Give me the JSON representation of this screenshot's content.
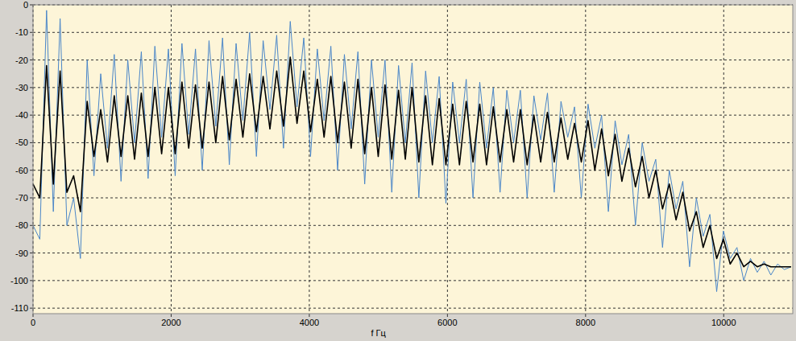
{
  "chart_data": {
    "type": "line",
    "xlabel": "f Гц",
    "xlim": [
      0,
      11000
    ],
    "xticks": [
      0,
      2000,
      4000,
      6000,
      8000,
      10000
    ],
    "ylim": [
      -112,
      0
    ],
    "yticks": [
      0,
      -10,
      -20,
      -30,
      -40,
      -50,
      -60,
      -70,
      -80,
      -90,
      -100,
      -110
    ],
    "grid": true,
    "series": [
      {
        "color": "#4a86c8",
        "x": [
          0,
          98,
          196,
          294,
          392,
          490,
          588,
          686,
          784,
          882,
          980,
          1078,
          1176,
          1274,
          1372,
          1470,
          1568,
          1666,
          1764,
          1862,
          1960,
          2058,
          2156,
          2254,
          2352,
          2450,
          2548,
          2646,
          2744,
          2842,
          2940,
          3038,
          3136,
          3234,
          3332,
          3430,
          3528,
          3626,
          3724,
          3822,
          3920,
          4018,
          4116,
          4214,
          4312,
          4410,
          4508,
          4606,
          4704,
          4802,
          4900,
          4998,
          5096,
          5194,
          5292,
          5390,
          5488,
          5586,
          5684,
          5782,
          5880,
          5978,
          6076,
          6174,
          6272,
          6370,
          6468,
          6566,
          6664,
          6762,
          6860,
          6958,
          7056,
          7154,
          7252,
          7350,
          7448,
          7546,
          7644,
          7742,
          7840,
          7938,
          8036,
          8134,
          8232,
          8330,
          8428,
          8526,
          8624,
          8722,
          8820,
          8918,
          9016,
          9114,
          9212,
          9310,
          9408,
          9506,
          9604,
          9702,
          9800,
          9898,
          9996,
          10094,
          10192,
          10290,
          10388,
          10486,
          10584,
          10682,
          10780,
          10878,
          10976
        ],
        "values": [
          -80,
          -85,
          -2,
          -75,
          -5,
          -80,
          -70,
          -92,
          -20,
          -62,
          -25,
          -52,
          -18,
          -64,
          -20,
          -50,
          -17,
          -63,
          -15,
          -48,
          -16,
          -62,
          -14,
          -47,
          -16,
          -60,
          -13,
          -44,
          -12,
          -58,
          -14,
          -42,
          -10,
          -55,
          -13,
          -38,
          -11,
          -52,
          -6,
          -37,
          -12,
          -55,
          -16,
          -42,
          -15,
          -60,
          -18,
          -45,
          -17,
          -65,
          -20,
          -48,
          -20,
          -68,
          -22,
          -50,
          -21,
          -70,
          -24,
          -50,
          -26,
          -72,
          -28,
          -50,
          -27,
          -70,
          -28,
          -52,
          -30,
          -68,
          -31,
          -50,
          -31,
          -70,
          -33,
          -49,
          -32,
          -68,
          -35,
          -48,
          -37,
          -70,
          -36,
          -52,
          -40,
          -75,
          -42,
          -58,
          -47,
          -80,
          -50,
          -64,
          -56,
          -88,
          -60,
          -74,
          -64,
          -95,
          -70,
          -84,
          -76,
          -104,
          -82,
          -92,
          -88,
          -100,
          -92,
          -97,
          -93,
          -98,
          -94,
          -96,
          -95
        ]
      },
      {
        "color": "#000000",
        "x": [
          0,
          98,
          196,
          294,
          392,
          490,
          588,
          686,
          784,
          882,
          980,
          1078,
          1176,
          1274,
          1372,
          1470,
          1568,
          1666,
          1764,
          1862,
          1960,
          2058,
          2156,
          2254,
          2352,
          2450,
          2548,
          2646,
          2744,
          2842,
          2940,
          3038,
          3136,
          3234,
          3332,
          3430,
          3528,
          3626,
          3724,
          3822,
          3920,
          4018,
          4116,
          4214,
          4312,
          4410,
          4508,
          4606,
          4704,
          4802,
          4900,
          4998,
          5096,
          5194,
          5292,
          5390,
          5488,
          5586,
          5684,
          5782,
          5880,
          5978,
          6076,
          6174,
          6272,
          6370,
          6468,
          6566,
          6664,
          6762,
          6860,
          6958,
          7056,
          7154,
          7252,
          7350,
          7448,
          7546,
          7644,
          7742,
          7840,
          7938,
          8036,
          8134,
          8232,
          8330,
          8428,
          8526,
          8624,
          8722,
          8820,
          8918,
          9016,
          9114,
          9212,
          9310,
          9408,
          9506,
          9604,
          9702,
          9800,
          9898,
          9996,
          10094,
          10192,
          10290,
          10388,
          10486,
          10584,
          10682,
          10780,
          10878,
          10976
        ],
        "values": [
          -65,
          -70,
          -22,
          -65,
          -24,
          -68,
          -62,
          -75,
          -35,
          -55,
          -38,
          -57,
          -33,
          -55,
          -33,
          -56,
          -32,
          -55,
          -30,
          -54,
          -30,
          -54,
          -28,
          -52,
          -29,
          -52,
          -28,
          -50,
          -26,
          -49,
          -27,
          -48,
          -25,
          -46,
          -26,
          -45,
          -24,
          -44,
          -19,
          -43,
          -24,
          -46,
          -27,
          -48,
          -26,
          -50,
          -28,
          -52,
          -27,
          -54,
          -30,
          -55,
          -29,
          -56,
          -31,
          -56,
          -30,
          -57,
          -33,
          -58,
          -34,
          -58,
          -36,
          -58,
          -35,
          -57,
          -36,
          -58,
          -37,
          -57,
          -38,
          -57,
          -38,
          -58,
          -40,
          -57,
          -39,
          -57,
          -41,
          -56,
          -43,
          -57,
          -42,
          -60,
          -45,
          -62,
          -47,
          -64,
          -52,
          -66,
          -55,
          -70,
          -60,
          -74,
          -65,
          -78,
          -68,
          -82,
          -75,
          -88,
          -80,
          -92,
          -85,
          -94,
          -90,
          -95,
          -93,
          -95,
          -94,
          -95,
          -95,
          -95,
          -95
        ]
      }
    ]
  }
}
